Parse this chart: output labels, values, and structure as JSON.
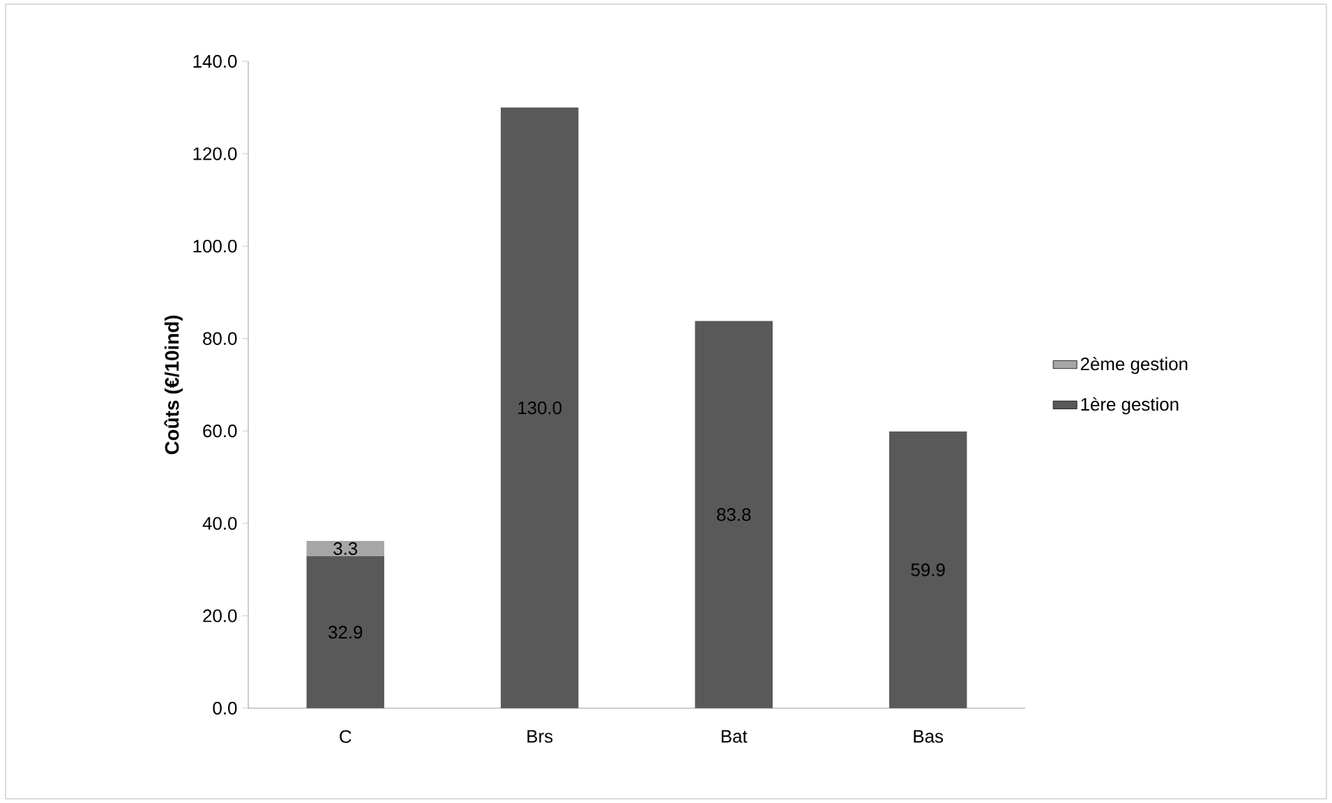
{
  "chart_data": {
    "type": "bar",
    "stacked": true,
    "ylabel": "Coûts (€/10ind)",
    "categories": [
      "C",
      "Brs",
      "Bat",
      "Bas"
    ],
    "series": [
      {
        "name": "1ère gestion",
        "color": "#595959",
        "values": [
          32.9,
          130.0,
          83.8,
          59.9
        ],
        "value_labels": [
          "32.9",
          "130.0",
          "83.8",
          "59.9"
        ]
      },
      {
        "name": "2ème gestion",
        "color": "#a6a6a6",
        "values": [
          3.3,
          null,
          null,
          null
        ],
        "value_labels": [
          "3.3",
          null,
          null,
          null
        ]
      }
    ],
    "ylim": [
      0,
      140
    ],
    "yticks": [
      {
        "value": 0,
        "label": "0.0"
      },
      {
        "value": 20,
        "label": "20.0"
      },
      {
        "value": 40,
        "label": "40.0"
      },
      {
        "value": 60,
        "label": "60.0"
      },
      {
        "value": 80,
        "label": "80.0"
      },
      {
        "value": 100,
        "label": "100.0"
      },
      {
        "value": 120,
        "label": "120.0"
      },
      {
        "value": 140,
        "label": "140.0"
      }
    ],
    "legend": "right",
    "grid": false
  }
}
